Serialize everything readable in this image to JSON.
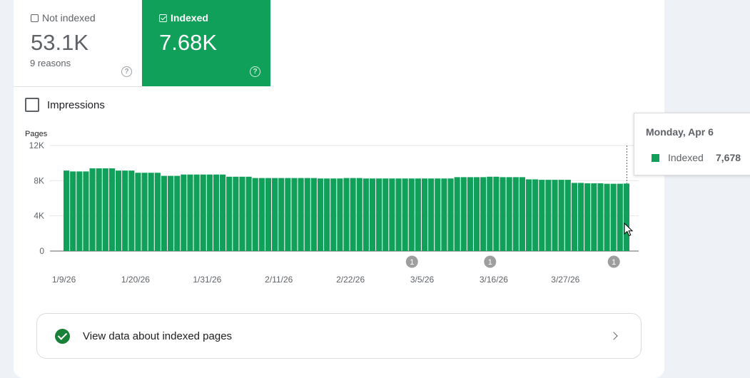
{
  "tiles": {
    "not_indexed": {
      "label": "Not indexed",
      "value": "53.1K",
      "sub": "9 reasons"
    },
    "indexed": {
      "label": "Indexed",
      "value": "7.68K"
    }
  },
  "impressions_label": "Impressions",
  "colors": {
    "indexed": "#11a05a",
    "annotation": "#9e9e9e"
  },
  "tooltip": {
    "date": "Monday, Apr 6",
    "series": "Indexed",
    "value": "7,678"
  },
  "view_link": {
    "label": "View data about indexed pages"
  },
  "chart_data": {
    "type": "bar",
    "ylabel": "Pages",
    "ylim": [
      0,
      12000
    ],
    "yticks": [
      {
        "value": 0,
        "label": "0"
      },
      {
        "value": 4000,
        "label": "4K"
      },
      {
        "value": 8000,
        "label": "8K"
      },
      {
        "value": 12000,
        "label": "12K"
      }
    ],
    "x_tick_labels": [
      "1/9/26",
      "1/20/26",
      "1/31/26",
      "2/11/26",
      "2/22/26",
      "3/5/26",
      "3/16/26",
      "3/27/26"
    ],
    "x_tick_every": 11,
    "annotations": [
      {
        "index": 53,
        "label": "1"
      },
      {
        "index": 65,
        "label": "1"
      },
      {
        "index": 84,
        "label": "1"
      }
    ],
    "series": [
      {
        "values": [
          9150,
          9050,
          9050,
          9050,
          9400,
          9400,
          9400,
          9400,
          9150,
          9150,
          9150,
          8900,
          8900,
          8900,
          8900,
          8550,
          8550,
          8550,
          8700,
          8700,
          8700,
          8700,
          8700,
          8700,
          8700,
          8450,
          8450,
          8450,
          8450,
          8300,
          8300,
          8300,
          8300,
          8300,
          8300,
          8300,
          8300,
          8300,
          8300,
          8250,
          8250,
          8250,
          8250,
          8300,
          8300,
          8300,
          8250,
          8250,
          8250,
          8250,
          8250,
          8250,
          8250,
          8250,
          8250,
          8250,
          8250,
          8250,
          8250,
          8250,
          8400,
          8400,
          8400,
          8400,
          8400,
          8450,
          8450,
          8400,
          8400,
          8400,
          8400,
          8150,
          8150,
          8100,
          8100,
          8100,
          8100,
          8100,
          7750,
          7750,
          7700,
          7700,
          7700,
          7650,
          7650,
          7650,
          7678
        ]
      }
    ]
  }
}
